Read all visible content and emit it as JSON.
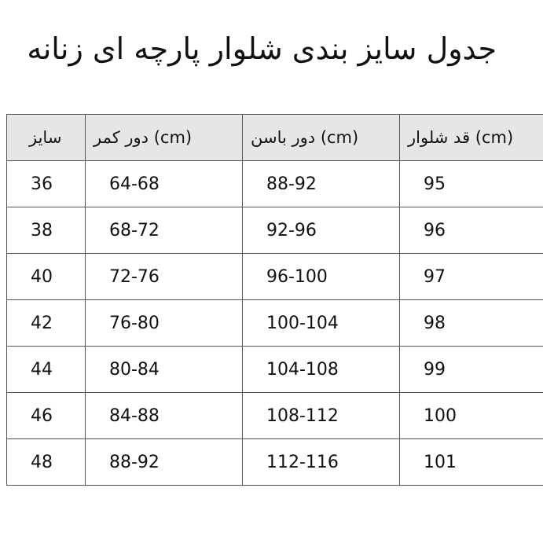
{
  "title": "جدول سایز بندی شلوار پارچه ای زنانه",
  "table": {
    "headers": [
      "سایز",
      "دور کمر (cm)",
      "دور باسن (cm)",
      "قد شلوار (cm)"
    ],
    "rows": [
      [
        "36",
        "64-68",
        "88-92",
        "95"
      ],
      [
        "38",
        "68-72",
        "92-96",
        "96"
      ],
      [
        "40",
        "72-76",
        "96-100",
        "97"
      ],
      [
        "42",
        "76-80",
        "100-104",
        "98"
      ],
      [
        "44",
        "80-84",
        "104-108",
        "99"
      ],
      [
        "46",
        "84-88",
        "108-112",
        "100"
      ],
      [
        "48",
        "88-92",
        "112-116",
        "101"
      ]
    ]
  }
}
